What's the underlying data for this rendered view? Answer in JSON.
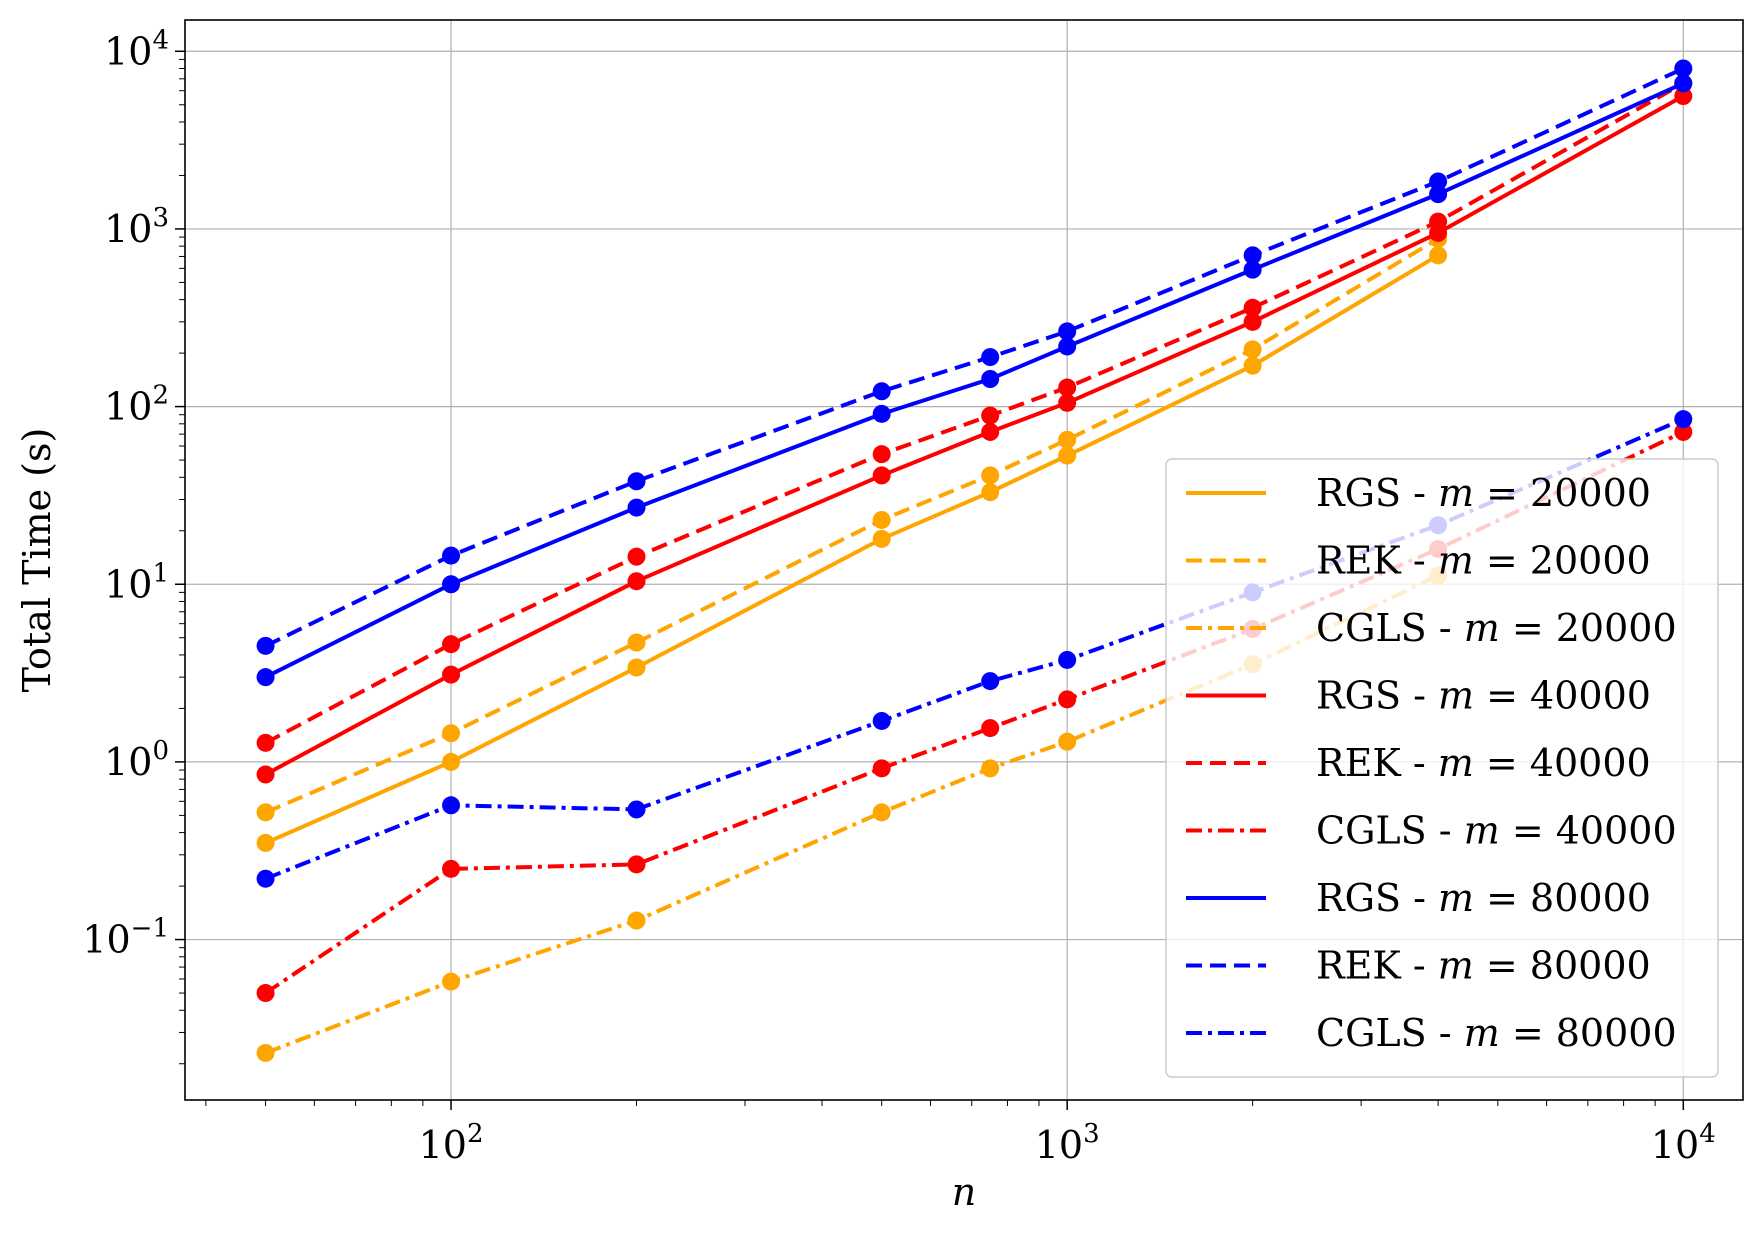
{
  "chart_data": {
    "type": "line",
    "xscale": "log",
    "yscale": "log",
    "xlabel": "n",
    "ylabel": "Total Time (s)",
    "xlim": [
      37,
      12500
    ],
    "ylim": [
      0.0125,
      15000
    ],
    "x_ticks": [
      {
        "base": "10",
        "exp": "2",
        "value": 100
      },
      {
        "base": "10",
        "exp": "3",
        "value": 1000
      },
      {
        "base": "10",
        "exp": "4",
        "value": 10000
      }
    ],
    "y_ticks": [
      {
        "base": "10",
        "exp": "−1",
        "value": 0.1
      },
      {
        "base": "10",
        "exp": "0",
        "value": 1
      },
      {
        "base": "10",
        "exp": "1",
        "value": 10
      },
      {
        "base": "10",
        "exp": "2",
        "value": 100
      },
      {
        "base": "10",
        "exp": "3",
        "value": 1000
      },
      {
        "base": "10",
        "exp": "4",
        "value": 10000
      }
    ],
    "grid": true,
    "legend_position": "lower-right",
    "x": [
      50,
      100,
      200,
      500,
      750,
      1000,
      2000,
      4000,
      10000
    ],
    "series": [
      {
        "name": "RGS - m = 20000",
        "label_prefix": "RGS - ",
        "label_var": "m",
        "label_value": " = 20000",
        "color": "#ffa500",
        "linestyle": "solid",
        "values": [
          0.35,
          1.0,
          3.4,
          18,
          33,
          53,
          170,
          710,
          null
        ]
      },
      {
        "name": "REK - m = 20000",
        "label_prefix": "REK - ",
        "label_var": "m",
        "label_value": " = 20000",
        "color": "#ffa500",
        "linestyle": "dashed",
        "values": [
          0.52,
          1.45,
          4.7,
          23,
          41,
          65,
          210,
          880,
          null
        ]
      },
      {
        "name": "CGLS - m = 20000",
        "label_prefix": "CGLS - ",
        "label_var": "m",
        "label_value": " = 20000",
        "color": "#ffa500",
        "linestyle": "dashdot",
        "values": [
          0.023,
          0.058,
          0.128,
          0.52,
          0.92,
          1.3,
          3.55,
          11.2,
          null
        ]
      },
      {
        "name": "RGS - m = 40000",
        "label_prefix": "RGS - ",
        "label_var": "m",
        "label_value": " = 40000",
        "color": "#ff0000",
        "linestyle": "solid",
        "values": [
          0.85,
          3.1,
          10.4,
          41,
          72,
          105,
          300,
          950,
          5600
        ]
      },
      {
        "name": "REK - m = 40000",
        "label_prefix": "REK - ",
        "label_var": "m",
        "label_value": " = 40000",
        "color": "#ff0000",
        "linestyle": "dashed",
        "values": [
          1.28,
          4.6,
          14.3,
          54,
          89,
          128,
          360,
          1100,
          6600
        ]
      },
      {
        "name": "CGLS - m = 40000",
        "label_prefix": "CGLS - ",
        "label_var": "m",
        "label_value": " = 40000",
        "color": "#ff0000",
        "linestyle": "dashdot",
        "values": [
          0.05,
          0.25,
          0.265,
          0.92,
          1.55,
          2.25,
          5.6,
          15.8,
          72
        ]
      },
      {
        "name": "RGS - m = 80000",
        "label_prefix": "RGS - ",
        "label_var": "m",
        "label_value": " = 80000",
        "color": "#0000ff",
        "linestyle": "solid",
        "values": [
          3.0,
          10.0,
          27,
          91,
          143,
          218,
          590,
          1570,
          6600
        ]
      },
      {
        "name": "REK - m = 80000",
        "label_prefix": "REK - ",
        "label_var": "m",
        "label_value": " = 80000",
        "color": "#0000ff",
        "linestyle": "dashed",
        "values": [
          4.5,
          14.5,
          38,
          122,
          190,
          265,
          710,
          1850,
          8000
        ]
      },
      {
        "name": "CGLS - m = 80000",
        "label_prefix": "CGLS - ",
        "label_var": "m",
        "label_value": " = 80000",
        "color": "#0000ff",
        "linestyle": "dashdot",
        "values": [
          0.22,
          0.57,
          0.54,
          1.7,
          2.85,
          3.75,
          9.0,
          21.5,
          85
        ]
      }
    ]
  }
}
